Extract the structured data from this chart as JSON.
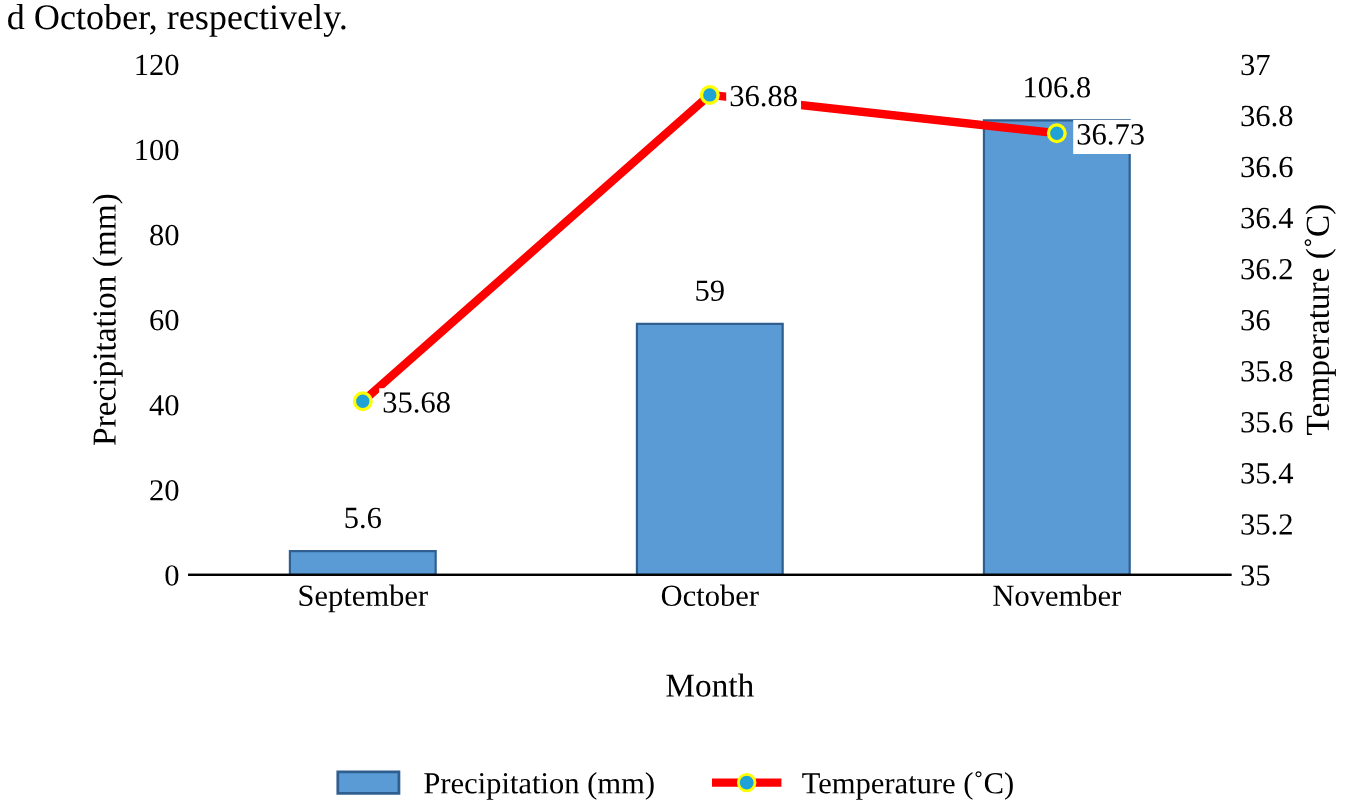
{
  "chart_data": {
    "type": "bar",
    "xlabel": "Month",
    "ylabel": "Precipitation (mm)",
    "y2label": "Temperature (˚C)",
    "categories": [
      "September",
      "October",
      "November"
    ],
    "series": [
      {
        "name": "Precipitation (mm)",
        "color": "#5b9bd5",
        "values": [
          5.6,
          59,
          106.8
        ]
      },
      {
        "name": "Temperature (˚C)",
        "type": "line",
        "axis": "y2",
        "color": "#ff0000",
        "marker": "circle",
        "values": [
          35.68,
          36.88,
          36.73
        ]
      }
    ],
    "ylim": [
      0,
      120
    ],
    "yticks": [
      0,
      20,
      40,
      60,
      80,
      100,
      120
    ],
    "y2lim": [
      35,
      37
    ],
    "y2ticks": [
      35,
      35.2,
      35.4,
      35.6,
      35.8,
      36,
      36.2,
      36.4,
      36.6,
      36.8,
      37
    ],
    "data_labels": true,
    "grid": false,
    "legend": "bottom",
    "annotations": [
      "d October, respectively."
    ]
  }
}
